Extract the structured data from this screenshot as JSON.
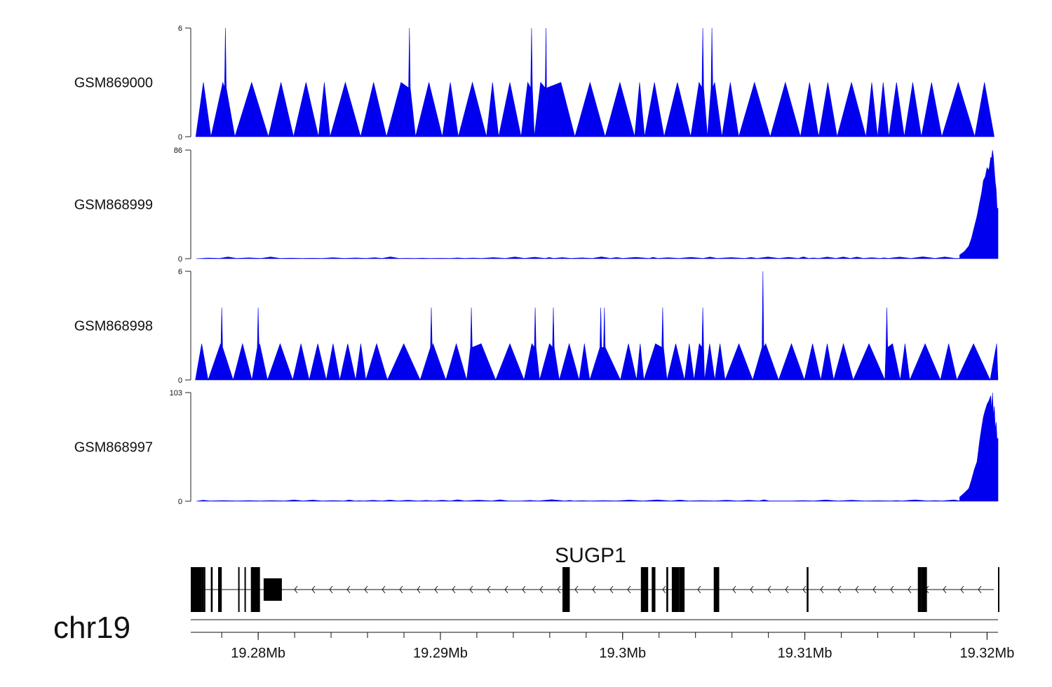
{
  "chart_data": {
    "type": "area",
    "region": {
      "start": 19.2763,
      "end": 19.3206,
      "unit": "Mb"
    },
    "fill_color": "#0000ee",
    "tracks": [
      {
        "name": "GSM869000",
        "ymax": 6,
        "ymax_label": "6",
        "ymin_label": "0",
        "profile": "triangles",
        "base_height": 3,
        "peaks": [
          [
            19.2782,
            6
          ],
          [
            19.2883,
            6
          ],
          [
            19.295,
            6
          ],
          [
            19.2958,
            6
          ],
          [
            19.3044,
            6
          ],
          [
            19.3049,
            6
          ]
        ]
      },
      {
        "name": "GSM868999",
        "ymax": 86,
        "ymax_label": "86",
        "ymin_label": "0",
        "profile": "flat-with-peak",
        "base_height": 1.5,
        "peak_region": [
          [
            19.3185,
            3
          ],
          [
            19.319,
            10
          ],
          [
            19.3193,
            25
          ],
          [
            19.3196,
            45
          ],
          [
            19.3198,
            62
          ],
          [
            19.32,
            72
          ],
          [
            19.3202,
            80
          ],
          [
            19.3203,
            86
          ],
          [
            19.3204,
            70
          ],
          [
            19.3205,
            55
          ],
          [
            19.3206,
            40
          ]
        ]
      },
      {
        "name": "GSM868998",
        "ymax": 6,
        "ymax_label": "6",
        "ymin_label": "0",
        "profile": "triangles",
        "base_height": 2,
        "peaks": [
          [
            19.278,
            4
          ],
          [
            19.28,
            4
          ],
          [
            19.2895,
            4
          ],
          [
            19.2917,
            4
          ],
          [
            19.2952,
            4
          ],
          [
            19.2962,
            4
          ],
          [
            19.2988,
            4
          ],
          [
            19.299,
            4
          ],
          [
            19.3022,
            4
          ],
          [
            19.3044,
            4
          ],
          [
            19.3077,
            6
          ],
          [
            19.3145,
            4
          ]
        ]
      },
      {
        "name": "GSM868997",
        "ymax": 103,
        "ymax_label": "103",
        "ymin_label": "0",
        "profile": "flat-with-peak",
        "base_height": 1.5,
        "peak_region": [
          [
            19.3185,
            4
          ],
          [
            19.319,
            12
          ],
          [
            19.3193,
            30
          ],
          [
            19.3196,
            58
          ],
          [
            19.3198,
            80
          ],
          [
            19.32,
            92
          ],
          [
            19.3202,
            100
          ],
          [
            19.3203,
            103
          ],
          [
            19.3204,
            90
          ],
          [
            19.3205,
            75
          ],
          [
            19.3206,
            60
          ]
        ]
      }
    ],
    "gene": {
      "name": "SUGP1",
      "strand": "-",
      "exons": [
        [
          19.2763,
          19.2769
        ],
        [
          19.2769,
          19.277
        ],
        [
          19.277,
          19.2771
        ],
        [
          19.2774,
          19.2775
        ],
        [
          19.2778,
          19.278
        ],
        [
          19.2789,
          19.27895
        ],
        [
          19.27925,
          19.2793
        ],
        [
          19.2796,
          19.2801
        ],
        [
          19.2803,
          19.2813
        ],
        [
          19.2967,
          19.2971
        ],
        [
          19.301,
          19.3014
        ],
        [
          19.3016,
          19.3018
        ],
        [
          19.3024,
          19.3025
        ],
        [
          19.3027,
          19.3031
        ],
        [
          19.3031,
          19.3034
        ],
        [
          19.305,
          19.3053
        ],
        [
          19.3101,
          19.3102
        ],
        [
          19.3162,
          19.3164
        ],
        [
          19.3164,
          19.3167
        ],
        [
          19.3206,
          19.32065
        ]
      ]
    },
    "chromosome": "chr19",
    "x_ticks": [
      19.28,
      19.29,
      19.3,
      19.31,
      19.32
    ],
    "x_tick_labels": [
      "19.28Mb",
      "19.29Mb",
      "19.3Mb",
      "19.31Mb",
      "19.32Mb"
    ],
    "minor_tick_step": 0.002
  }
}
